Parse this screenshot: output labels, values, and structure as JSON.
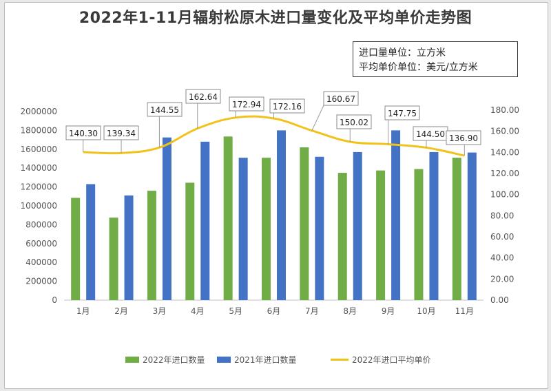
{
  "title": "2022年1-11月辐射松原木进口量变化及平均单价走势图",
  "unit_note": {
    "line1": "进口量单位：立方米",
    "line2": "平均单价单位：美元/立方米"
  },
  "colors": {
    "bar2022": "#70ad47",
    "bar2021": "#4472c4",
    "line2022": "#f2c21b"
  },
  "chart_data": {
    "type": "bar",
    "categories": [
      "1月",
      "2月",
      "3月",
      "4月",
      "5月",
      "6月",
      "7月",
      "8月",
      "9月",
      "10月",
      "11月"
    ],
    "series": [
      {
        "name": "2022年进口数量",
        "type": "bar",
        "axis": "left",
        "values": [
          1085000,
          875000,
          1160000,
          1245000,
          1735000,
          1510000,
          1620000,
          1350000,
          1375000,
          1390000,
          1510000
        ]
      },
      {
        "name": "2021年进口数量",
        "type": "bar",
        "axis": "left",
        "values": [
          1230000,
          1110000,
          1725000,
          1680000,
          1510000,
          1800000,
          1520000,
          1570000,
          1800000,
          1570000,
          1565000
        ]
      },
      {
        "name": "2022年进口平均单价",
        "type": "line",
        "axis": "right",
        "values": [
          140.3,
          139.34,
          144.55,
          162.64,
          172.94,
          172.16,
          160.67,
          150.02,
          147.75,
          144.5,
          136.9
        ],
        "labels": [
          "140.30",
          "139.34",
          "144.55",
          "162.64",
          "172.94",
          "172.16",
          "160.67",
          "150.02",
          "147.75",
          "144.50",
          "136.90"
        ]
      }
    ],
    "y_left": {
      "ylim": [
        0,
        2000000
      ],
      "ticks": [
        "0",
        "200000",
        "400000",
        "600000",
        "800000",
        "1000000",
        "1200000",
        "1400000",
        "1600000",
        "1800000",
        "2000000"
      ]
    },
    "y_right": {
      "ylim": [
        0,
        180
      ],
      "ticks": [
        "0.00",
        "20.00",
        "40.00",
        "60.00",
        "80.00",
        "100.00",
        "120.00",
        "140.00",
        "160.00",
        "180.00"
      ]
    },
    "grid": false,
    "legend_position": "bottom"
  }
}
